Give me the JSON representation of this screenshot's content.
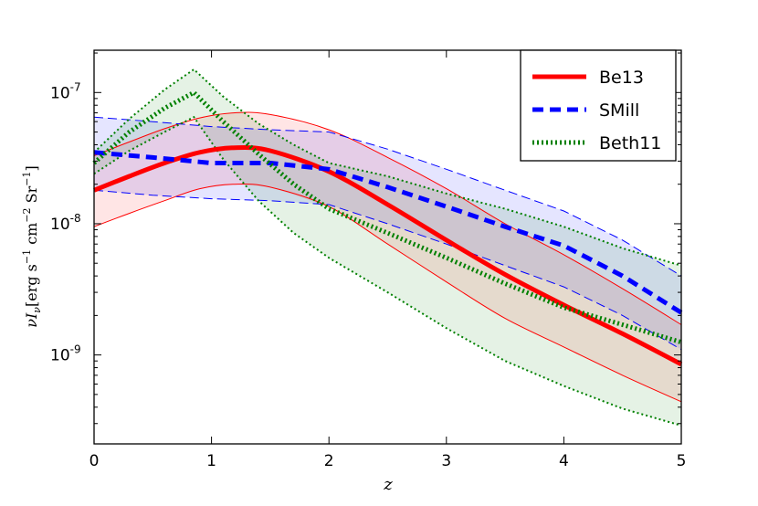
{
  "chart_data": {
    "type": "line",
    "title": "",
    "xlabel": "z",
    "ylabel": "νI_ν [erg s^-1 cm^-2 Sr^-1]",
    "ylabel_parts": {
      "prefix": "νI",
      "sub": "ν",
      "units": "[erg s",
      "e1": "−1",
      "mid": " cm",
      "e2": "−2",
      "end": " Sr",
      "e3": "−1",
      "close": "]"
    },
    "xlim": [
      0,
      5
    ],
    "ylim_log": [
      2.1e-10,
      2.1e-07
    ],
    "y_scale": "log",
    "x_ticks": [
      {
        "v": 0,
        "label": "0"
      },
      {
        "v": 1,
        "label": "1"
      },
      {
        "v": 2,
        "label": "2"
      },
      {
        "v": 3,
        "label": "3"
      },
      {
        "v": 4,
        "label": "4"
      },
      {
        "v": 5,
        "label": "5"
      }
    ],
    "y_ticks": [
      {
        "v": 1e-09,
        "mant": "10",
        "exp": "-9"
      },
      {
        "v": 1e-08,
        "mant": "10",
        "exp": "-8"
      },
      {
        "v": 1e-07,
        "mant": "10",
        "exp": "-7"
      }
    ],
    "legend_position": "top-right",
    "series": [
      {
        "name": "Be13",
        "color": "#ff0000",
        "style": "solid-thick",
        "x": [
          0,
          0.3,
          0.6,
          0.9,
          1.2,
          1.5,
          2.0,
          2.5,
          3.0,
          3.5,
          4.0,
          4.5,
          5.0
        ],
        "values": [
          1.8e-08,
          2.3e-08,
          2.9e-08,
          3.5e-08,
          3.8e-08,
          3.6e-08,
          2.5e-08,
          1.4e-08,
          7.5e-09,
          4.1e-09,
          2.4e-09,
          1.45e-09,
          8.5e-10
        ],
        "upper": [
          3.3e-08,
          4.2e-08,
          5.3e-08,
          6.4e-08,
          7e-08,
          6.8e-08,
          5.2e-08,
          3.2e-08,
          1.85e-08,
          1e-08,
          5.8e-09,
          3.2e-09,
          1.7e-09
        ],
        "lower": [
          9.5e-09,
          1.2e-08,
          1.5e-08,
          1.85e-08,
          2e-08,
          1.9e-08,
          1.35e-08,
          7e-09,
          3.6e-09,
          1.9e-09,
          1.15e-09,
          7e-10,
          4.4e-10
        ],
        "fill": "#ff0000"
      },
      {
        "name": "SMill",
        "color": "#0000ff",
        "style": "dashed-thick",
        "x": [
          0,
          0.5,
          1.0,
          1.5,
          2.0,
          2.5,
          3.0,
          3.5,
          4.0,
          4.5,
          5.0
        ],
        "values": [
          3.5e-08,
          3.2e-08,
          2.9e-08,
          2.9e-08,
          2.6e-08,
          1.9e-08,
          1.35e-08,
          9.5e-09,
          6.8e-09,
          4e-09,
          2.1e-09
        ],
        "upper": [
          6.5e-08,
          6e-08,
          5.5e-08,
          5.2e-08,
          5e-08,
          3.7e-08,
          2.6e-08,
          1.8e-08,
          1.25e-08,
          7.5e-09,
          4e-09
        ],
        "lower": [
          1.8e-08,
          1.65e-08,
          1.55e-08,
          1.5e-08,
          1.4e-08,
          1e-08,
          7e-09,
          4.8e-09,
          3.3e-09,
          2e-09,
          1.1e-09
        ],
        "fill": "#0000ff"
      },
      {
        "name": "Beth11",
        "color": "#008000",
        "style": "dotted-thick",
        "x": [
          0,
          0.3,
          0.6,
          0.85,
          1.1,
          1.4,
          1.7,
          2.0,
          2.5,
          3.0,
          3.5,
          4.0,
          4.5,
          5.0
        ],
        "values": [
          2.9e-08,
          5e-08,
          7.6e-08,
          1e-07,
          6e-08,
          3.4e-08,
          2e-08,
          1.3e-08,
          8.5e-09,
          5.5e-09,
          3.5e-09,
          2.3e-09,
          1.7e-09,
          1.25e-09
        ],
        "upper": [
          3.5e-08,
          6.3e-08,
          1.05e-07,
          1.5e-07,
          9.3e-08,
          5.8e-08,
          4e-08,
          2.9e-08,
          2.3e-08,
          1.7e-08,
          1.3e-08,
          9.5e-09,
          6.5e-09,
          4.8e-09
        ],
        "lower": [
          2.4e-08,
          3.6e-08,
          5e-08,
          6.5e-08,
          3.1e-08,
          1.5e-08,
          8.5e-09,
          5.5e-09,
          3e-09,
          1.6e-09,
          9e-10,
          5.8e-10,
          3.9e-10,
          2.9e-10
        ],
        "fill": "#008000"
      }
    ]
  }
}
